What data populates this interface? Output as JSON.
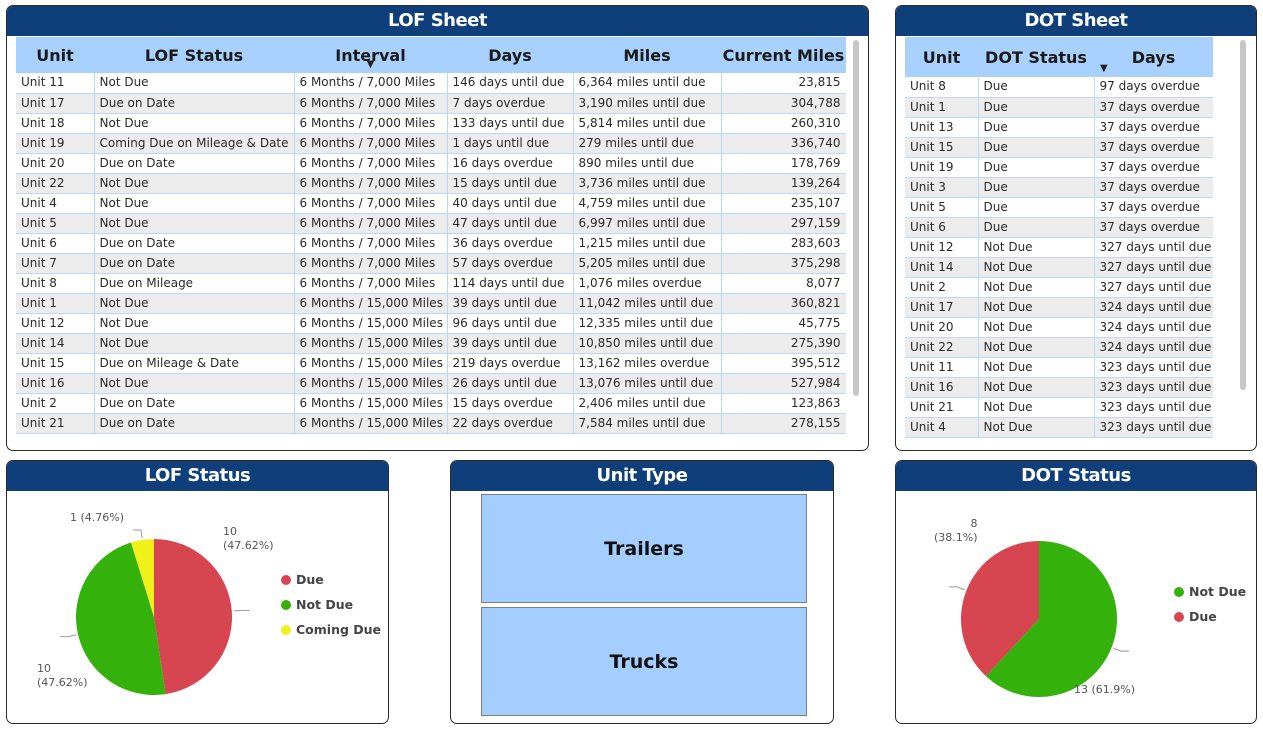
{
  "lof_sheet": {
    "title": "LOF Sheet",
    "columns": [
      "Unit",
      "LOF Status",
      "Interval",
      "Days",
      "Miles",
      "Current Miles"
    ],
    "rows": [
      [
        "Unit 11",
        "Not Due",
        "6 Months / 7,000 Miles",
        "146 days until due",
        "6,364 miles until due",
        "23,815"
      ],
      [
        "Unit 17",
        "Due on Date",
        "6 Months / 7,000 Miles",
        "7 days overdue",
        "3,190 miles until due",
        "304,788"
      ],
      [
        "Unit 18",
        "Not Due",
        "6 Months / 7,000 Miles",
        "133 days until due",
        "5,814 miles until due",
        "260,310"
      ],
      [
        "Unit 19",
        "Coming Due on Mileage & Date",
        "6 Months / 7,000 Miles",
        "1 days until due",
        "279 miles until due",
        "336,740"
      ],
      [
        "Unit 20",
        "Due on Date",
        "6 Months / 7,000 Miles",
        "16 days overdue",
        "890 miles until due",
        "178,769"
      ],
      [
        "Unit 22",
        "Not Due",
        "6 Months / 7,000 Miles",
        "15 days until due",
        "3,736 miles until due",
        "139,264"
      ],
      [
        "Unit 4",
        "Not Due",
        "6 Months / 7,000 Miles",
        "40 days until due",
        "4,759 miles until due",
        "235,107"
      ],
      [
        "Unit 5",
        "Not Due",
        "6 Months / 7,000 Miles",
        "47 days until due",
        "6,997 miles until due",
        "297,159"
      ],
      [
        "Unit 6",
        "Due on Date",
        "6 Months / 7,000 Miles",
        "36 days overdue",
        "1,215 miles until due",
        "283,603"
      ],
      [
        "Unit 7",
        "Due on Date",
        "6 Months / 7,000 Miles",
        "57 days overdue",
        "5,205 miles until due",
        "375,298"
      ],
      [
        "Unit 8",
        "Due on Mileage",
        "6 Months / 7,000 Miles",
        "114 days until due",
        "1,076 miles overdue",
        "8,077"
      ],
      [
        "Unit 1",
        "Not Due",
        "6 Months / 15,000 Miles",
        "39 days until due",
        "11,042 miles until due",
        "360,821"
      ],
      [
        "Unit 12",
        "Not Due",
        "6 Months / 15,000 Miles",
        "96 days until due",
        "12,335 miles until due",
        "45,775"
      ],
      [
        "Unit 14",
        "Not Due",
        "6 Months / 15,000 Miles",
        "39 days until due",
        "10,850 miles until due",
        "275,390"
      ],
      [
        "Unit 15",
        "Due on Mileage & Date",
        "6 Months / 15,000 Miles",
        "219 days overdue",
        "13,162 miles overdue",
        "395,512"
      ],
      [
        "Unit 16",
        "Not Due",
        "6 Months / 15,000 Miles",
        "26 days until due",
        "13,076 miles until due",
        "527,984"
      ],
      [
        "Unit 2",
        "Due on Date",
        "6 Months / 15,000 Miles",
        "15 days overdue",
        "2,406 miles until due",
        "123,863"
      ],
      [
        "Unit 21",
        "Due on Date",
        "6 Months / 15,000 Miles",
        "22 days overdue",
        "7,584 miles until due",
        "278,155"
      ]
    ]
  },
  "dot_sheet": {
    "title": "DOT Sheet",
    "columns": [
      "Unit",
      "DOT Status",
      "Days"
    ],
    "rows": [
      [
        "Unit 8",
        "Due",
        "97 days overdue"
      ],
      [
        "Unit 1",
        "Due",
        "37 days overdue"
      ],
      [
        "Unit 13",
        "Due",
        "37 days overdue"
      ],
      [
        "Unit 15",
        "Due",
        "37 days overdue"
      ],
      [
        "Unit 19",
        "Due",
        "37 days overdue"
      ],
      [
        "Unit 3",
        "Due",
        "37 days overdue"
      ],
      [
        "Unit 5",
        "Due",
        "37 days overdue"
      ],
      [
        "Unit 6",
        "Due",
        "37 days overdue"
      ],
      [
        "Unit 12",
        "Not Due",
        "327 days until due"
      ],
      [
        "Unit 14",
        "Not Due",
        "327 days until due"
      ],
      [
        "Unit 2",
        "Not Due",
        "327 days until due"
      ],
      [
        "Unit 17",
        "Not Due",
        "324 days until due"
      ],
      [
        "Unit 20",
        "Not Due",
        "324 days until due"
      ],
      [
        "Unit 22",
        "Not Due",
        "324 days until due"
      ],
      [
        "Unit 11",
        "Not Due",
        "323 days until due"
      ],
      [
        "Unit 16",
        "Not Due",
        "323 days until due"
      ],
      [
        "Unit 21",
        "Not Due",
        "323 days until due"
      ],
      [
        "Unit 4",
        "Not Due",
        "323 days until due"
      ]
    ]
  },
  "lof_status_card": {
    "title": "LOF Status",
    "labels": {
      "due": "10\n(47.62%)",
      "not_due": "10\n(47.62%)",
      "coming_due": "1 (4.76%)"
    }
  },
  "unit_type_card": {
    "title": "Unit Type",
    "options": [
      "Trailers",
      "Trucks"
    ]
  },
  "dot_status_card": {
    "title": "DOT Status",
    "labels": {
      "due": "8\n(38.1%)",
      "not_due": "13 (61.9%)"
    }
  },
  "chart_data": [
    {
      "type": "pie",
      "title": "LOF Status",
      "categories": [
        "Due",
        "Not Due",
        "Coming Due"
      ],
      "values": [
        10,
        10,
        1
      ],
      "percents": [
        47.62,
        47.62,
        4.76
      ],
      "colors": [
        "#d64550",
        "#35b10c",
        "#f0f01a"
      ],
      "legend": "right"
    },
    {
      "type": "pie",
      "title": "DOT Status",
      "categories": [
        "Not Due",
        "Due"
      ],
      "values": [
        13,
        8
      ],
      "percents": [
        61.9,
        38.1
      ],
      "colors": [
        "#35b10c",
        "#d64550"
      ],
      "legend": "right"
    }
  ]
}
